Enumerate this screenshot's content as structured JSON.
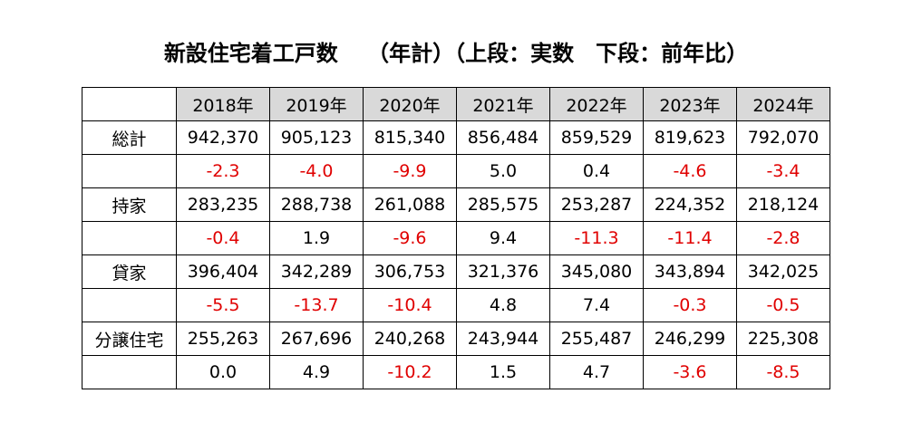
{
  "title": "新設住宅着工戸数　 （年計）（上段：実数　下段：前年比）",
  "colors": {
    "header_bg": "#d9d9d9",
    "negative": "#e00000",
    "text": "#000000"
  },
  "table": {
    "headers": [
      "2018年",
      "2019年",
      "2020年",
      "2021年",
      "2022年",
      "2023年",
      "2024年"
    ],
    "rows": [
      {
        "label": "総計",
        "values": [
          "942,370",
          "905,123",
          "815,340",
          "856,484",
          "859,529",
          "819,623",
          "792,070"
        ]
      },
      {
        "label": "",
        "values": [
          "-2.3",
          "-4.0",
          "-9.9",
          "5.0",
          "0.4",
          "-4.6",
          "-3.4"
        ]
      },
      {
        "label": "持家",
        "values": [
          "283,235",
          "288,738",
          "261,088",
          "285,575",
          "253,287",
          "224,352",
          "218,124"
        ]
      },
      {
        "label": "",
        "values": [
          "-0.4",
          "1.9",
          "-9.6",
          "9.4",
          "-11.3",
          "-11.4",
          "-2.8"
        ]
      },
      {
        "label": "貸家",
        "values": [
          "396,404",
          "342,289",
          "306,753",
          "321,376",
          "345,080",
          "343,894",
          "342,025"
        ]
      },
      {
        "label": "",
        "values": [
          "-5.5",
          "-13.7",
          "-10.4",
          "4.8",
          "7.4",
          "-0.3",
          "-0.5"
        ]
      },
      {
        "label": "分譲住宅",
        "values": [
          "255,263",
          "267,696",
          "240,268",
          "243,944",
          "255,487",
          "246,299",
          "225,308"
        ]
      },
      {
        "label": "",
        "values": [
          "0.0",
          "4.9",
          "-10.2",
          "1.5",
          "4.7",
          "-3.6",
          "-8.5"
        ]
      }
    ]
  }
}
